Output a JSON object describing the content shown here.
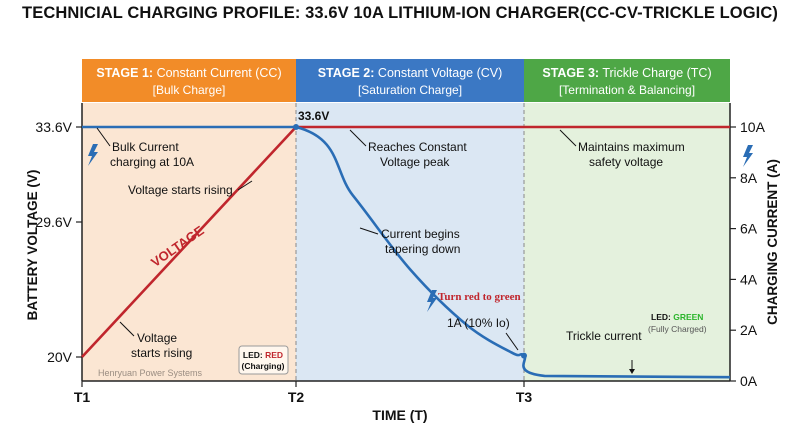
{
  "title": "TECHNICIAL CHARGING PROFILE: 33.6V 10A LITHIUM-ION CHARGER(CC-CV-TRICKLE LOGIC)",
  "colors": {
    "stage1": "#f28c28",
    "stage2": "#3b78c4",
    "stage3": "#4ea746",
    "voltage": "#c0262d",
    "current": "#2a6db5",
    "bg1": "#fbe6d3",
    "bg2": "#dbe7f3",
    "bg3": "#e4f1dd"
  },
  "stages": [
    {
      "name": "STAGE 1:",
      "desc": "Constant Current (CC)",
      "sub": "[Bulk Charge]"
    },
    {
      "name": "STAGE 2:",
      "desc": "Constant Voltage (CV)",
      "sub": "[Saturation Charge]"
    },
    {
      "name": "STAGE 3:",
      "desc": "Trickle Charge (TC)",
      "sub": "[Termination & Balancing]"
    }
  ],
  "annotations": {
    "bulk1": "Bulk Current",
    "bulk2": "charging at 10A",
    "vrising_top": "Voltage starts rising",
    "vrising_bot1": "Voltage",
    "vrising_bot2": "starts rising",
    "voltage_label": "VOLTAGE",
    "peak_value": "33.6V",
    "reaches1": "Reaches Constant",
    "reaches2": "Voltage peak",
    "taper1": "Current begins",
    "taper2": "tapering down",
    "turnred": "Turn red to green",
    "one_amp": "1A   (10% Io)",
    "maintains1": "Maintains maximum",
    "maintains2": "safety voltage",
    "trickle": "Trickle current",
    "led_red_prefix": "LED: ",
    "led_red_color": "RED",
    "led_red_state": "(Charging)",
    "led_green_prefix": "LED: ",
    "led_green_color": "GREEN",
    "led_green_state": "(Fully Charged)",
    "watermark": "Henryuan Power Systems"
  },
  "chart_data": {
    "type": "line",
    "x_ticks": [
      "T1",
      "T2",
      "T3"
    ],
    "xlabel": "TIME (T)",
    "ylabel_left": "BATTERY VOLTAGE (V)",
    "ylabel_right": "CHARGING CURRENT (A)",
    "y_left_ticks": [
      "33.6V",
      "29.6V",
      "20V"
    ],
    "y_left_values": [
      33.6,
      29.6,
      20
    ],
    "y_right_ticks": [
      "10A",
      "8A",
      "6A",
      "4A",
      "2A",
      "0A"
    ],
    "y_right_values": [
      10,
      8,
      6,
      4,
      2,
      0
    ],
    "y_right_range": [
      0,
      10
    ],
    "series": [
      {
        "name": "VOLTAGE",
        "axis": "left",
        "t": [
          1,
          2,
          3,
          4
        ],
        "v": [
          20,
          33.6,
          33.6,
          33.6
        ]
      },
      {
        "axis": "right",
        "t": [
          1,
          2,
          2.25,
          2.5,
          2.75,
          2.95,
          3,
          3.1,
          4
        ],
        "v": [
          10,
          10,
          7.3,
          4.4,
          2.2,
          1.1,
          1.0,
          0.2,
          0.15
        ]
      }
    ]
  }
}
